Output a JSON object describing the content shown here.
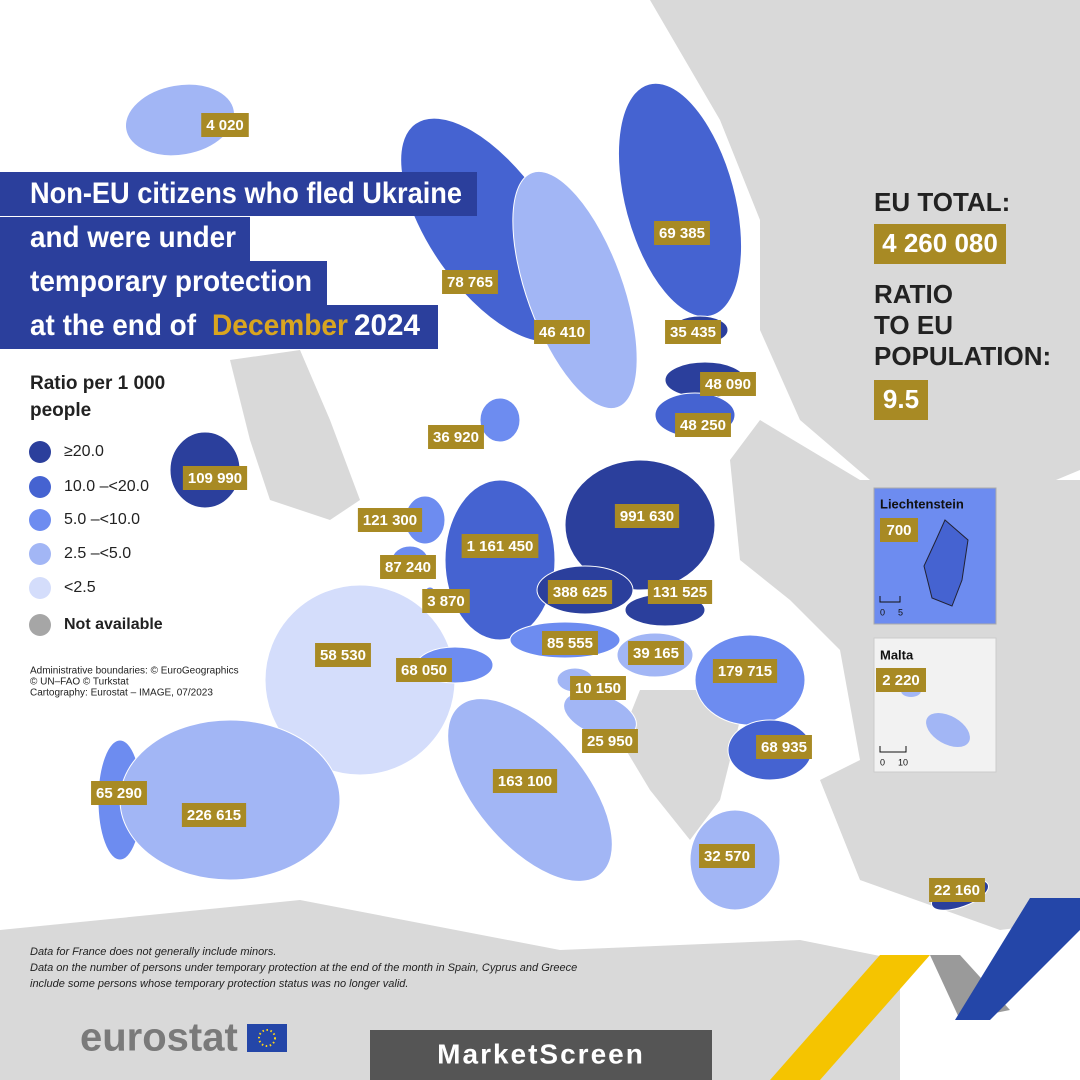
{
  "title": {
    "lines": [
      "Non-EU citizens who fled Ukraine",
      "and were under",
      "temporary protection"
    ],
    "last_prefix": "at the end of",
    "month": "December",
    "year": "2024"
  },
  "eu_total": {
    "label": "EU TOTAL:",
    "value": "4 260 080"
  },
  "ratio": {
    "label_lines": [
      "RATIO",
      "TO EU",
      "POPULATION:"
    ],
    "value": "9.5"
  },
  "legend": {
    "title_lines": [
      "Ratio per 1 000",
      "people"
    ],
    "items": [
      {
        "label": "≥20.0",
        "color": "#2b3f9c"
      },
      {
        "label": "10.0 –<20.0",
        "color": "#4563d1"
      },
      {
        "label": "5.0 –<10.0",
        "color": "#6d8cf0"
      },
      {
        "label": "2.5 –<5.0",
        "color": "#a2b6f5"
      },
      {
        "label": "<2.5",
        "color": "#d4ddfb"
      },
      {
        "label": "Not available",
        "color": "#a6a6a6"
      }
    ]
  },
  "regions": [
    {
      "value": "4 020",
      "class": 3
    },
    {
      "value": "78 765",
      "class": 1
    },
    {
      "value": "69 385",
      "class": 1
    },
    {
      "value": "46 410",
      "class": 3
    },
    {
      "value": "35 435",
      "class": 0
    },
    {
      "value": "48 090",
      "class": 0
    },
    {
      "value": "48 250",
      "class": 1
    },
    {
      "value": "36 920",
      "class": 2
    },
    {
      "value": "109 990",
      "class": 0
    },
    {
      "value": "121 300",
      "class": 2
    },
    {
      "value": "1 161 450",
      "class": 1
    },
    {
      "value": "991 630",
      "class": 0
    },
    {
      "value": "87 240",
      "class": 2
    },
    {
      "value": "3 870",
      "class": 2
    },
    {
      "value": "388 625",
      "class": 0
    },
    {
      "value": "131 525",
      "class": 0
    },
    {
      "value": "58 530",
      "class": 4
    },
    {
      "value": "85 555",
      "class": 2
    },
    {
      "value": "39 165",
      "class": 3
    },
    {
      "value": "68 050",
      "class": 2
    },
    {
      "value": "10 150",
      "class": 3
    },
    {
      "value": "179 715",
      "class": 2
    },
    {
      "value": "25 950",
      "class": 3
    },
    {
      "value": "68 935",
      "class": 1
    },
    {
      "value": "163 100",
      "class": 3
    },
    {
      "value": "65 290",
      "class": 2
    },
    {
      "value": "226 615",
      "class": 3
    },
    {
      "value": "32 570",
      "class": 3
    },
    {
      "value": "22 160",
      "class": 0
    }
  ],
  "insets": [
    {
      "title": "Liechtenstein",
      "value": "700",
      "scale": [
        "0",
        "5"
      ]
    },
    {
      "title": "Malta",
      "value": "2 220",
      "scale": [
        "0",
        "10"
      ]
    }
  ],
  "credits": [
    "Administrative boundaries: © EuroGeographics",
    "© UN–FAO © Turkstat",
    "Cartography: Eurostat – IMAGE, 07/2023"
  ],
  "notes": [
    "Data for France does not generally include minors.",
    "Data on the number of persons under temporary protection at the end of the month in Spain, Cyprus and Greece",
    "include some persons whose temporary protection status was no longer valid."
  ],
  "logo": "eurostat",
  "watermark": "MarketScreen"
}
